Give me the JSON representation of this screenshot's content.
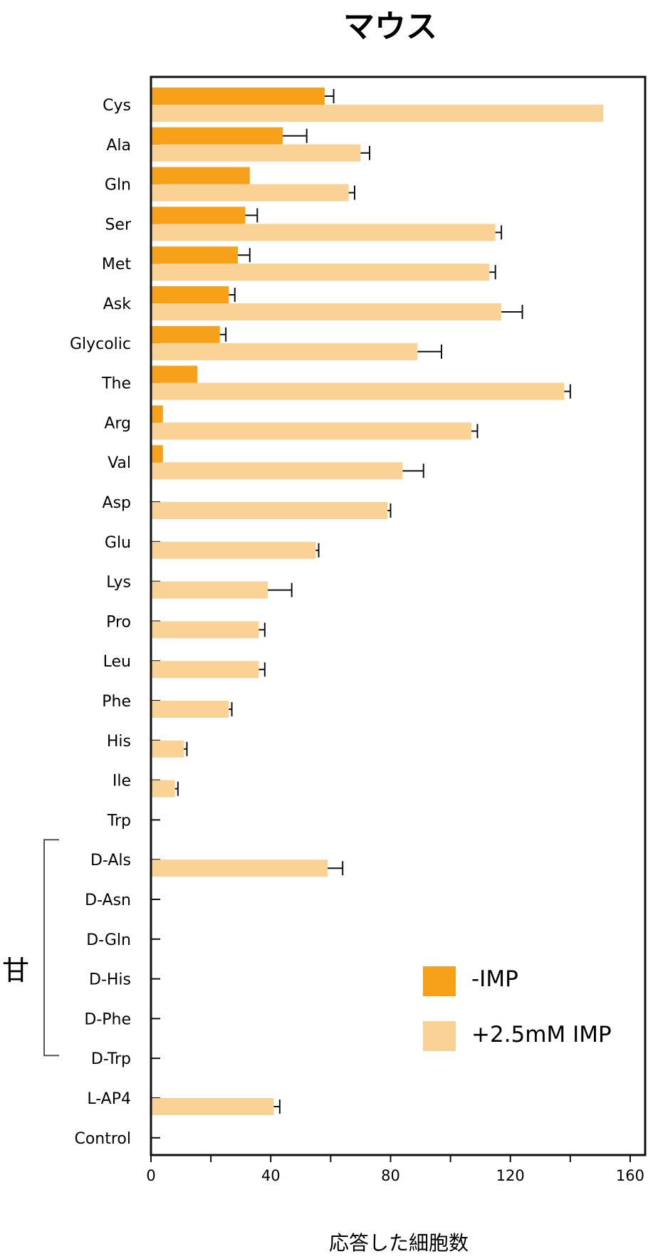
{
  "chart_data": {
    "type": "bar",
    "orientation": "horizontal",
    "title": "マウス",
    "xlabel": "応答した細胞数",
    "xlim": [
      0,
      165
    ],
    "xticks": [
      0,
      40,
      80,
      120,
      160
    ],
    "minor_xticks": [
      20,
      60,
      100,
      140
    ],
    "grid": false,
    "legend_position": "bottom-right",
    "categories": [
      "Cys",
      "Ala",
      "Gln",
      "Ser",
      "Met",
      "Ask",
      "Glycolic",
      "The",
      "Arg",
      "Val",
      "Asp",
      "Glu",
      "Lys",
      "Pro",
      "Leu",
      "Phe",
      "His",
      "Ile",
      "Trp",
      "D-Als",
      "D-Asn",
      "D-Gln",
      "D-His",
      "D-Phe",
      "D-Trp",
      "L-AP4",
      "Control"
    ],
    "series": [
      {
        "name": "-IMP",
        "color": "#f7a11a",
        "values": [
          58,
          44,
          33,
          31.5,
          29,
          26,
          23,
          15.5,
          4,
          4,
          0,
          0,
          0,
          0,
          0,
          0,
          0,
          0,
          0,
          0,
          0,
          0,
          0,
          0,
          0,
          0,
          0
        ],
        "errors": [
          3,
          8,
          0,
          4,
          4,
          2,
          2,
          0,
          0,
          0,
          0,
          0,
          0,
          0,
          0,
          0,
          0,
          0,
          0,
          0,
          0,
          0,
          0,
          0,
          0,
          0,
          0
        ]
      },
      {
        "name": "+2.5mM IMP",
        "color": "#fbd296",
        "values": [
          151,
          70,
          66,
          115,
          113,
          117,
          89,
          138,
          107,
          84,
          79,
          55,
          39,
          36,
          36,
          26,
          11,
          8,
          0,
          59,
          0,
          0,
          0,
          0,
          0,
          41,
          0
        ],
        "errors": [
          0,
          3,
          2,
          2,
          2,
          7,
          8,
          2,
          2,
          7,
          1,
          1,
          8,
          2,
          2,
          1,
          1,
          1,
          0,
          5,
          0,
          0,
          0,
          0,
          0,
          2,
          0
        ]
      }
    ],
    "annotations": [
      {
        "text": "甘",
        "spans": [
          "D-Als",
          "D-Trp"
        ]
      }
    ]
  }
}
